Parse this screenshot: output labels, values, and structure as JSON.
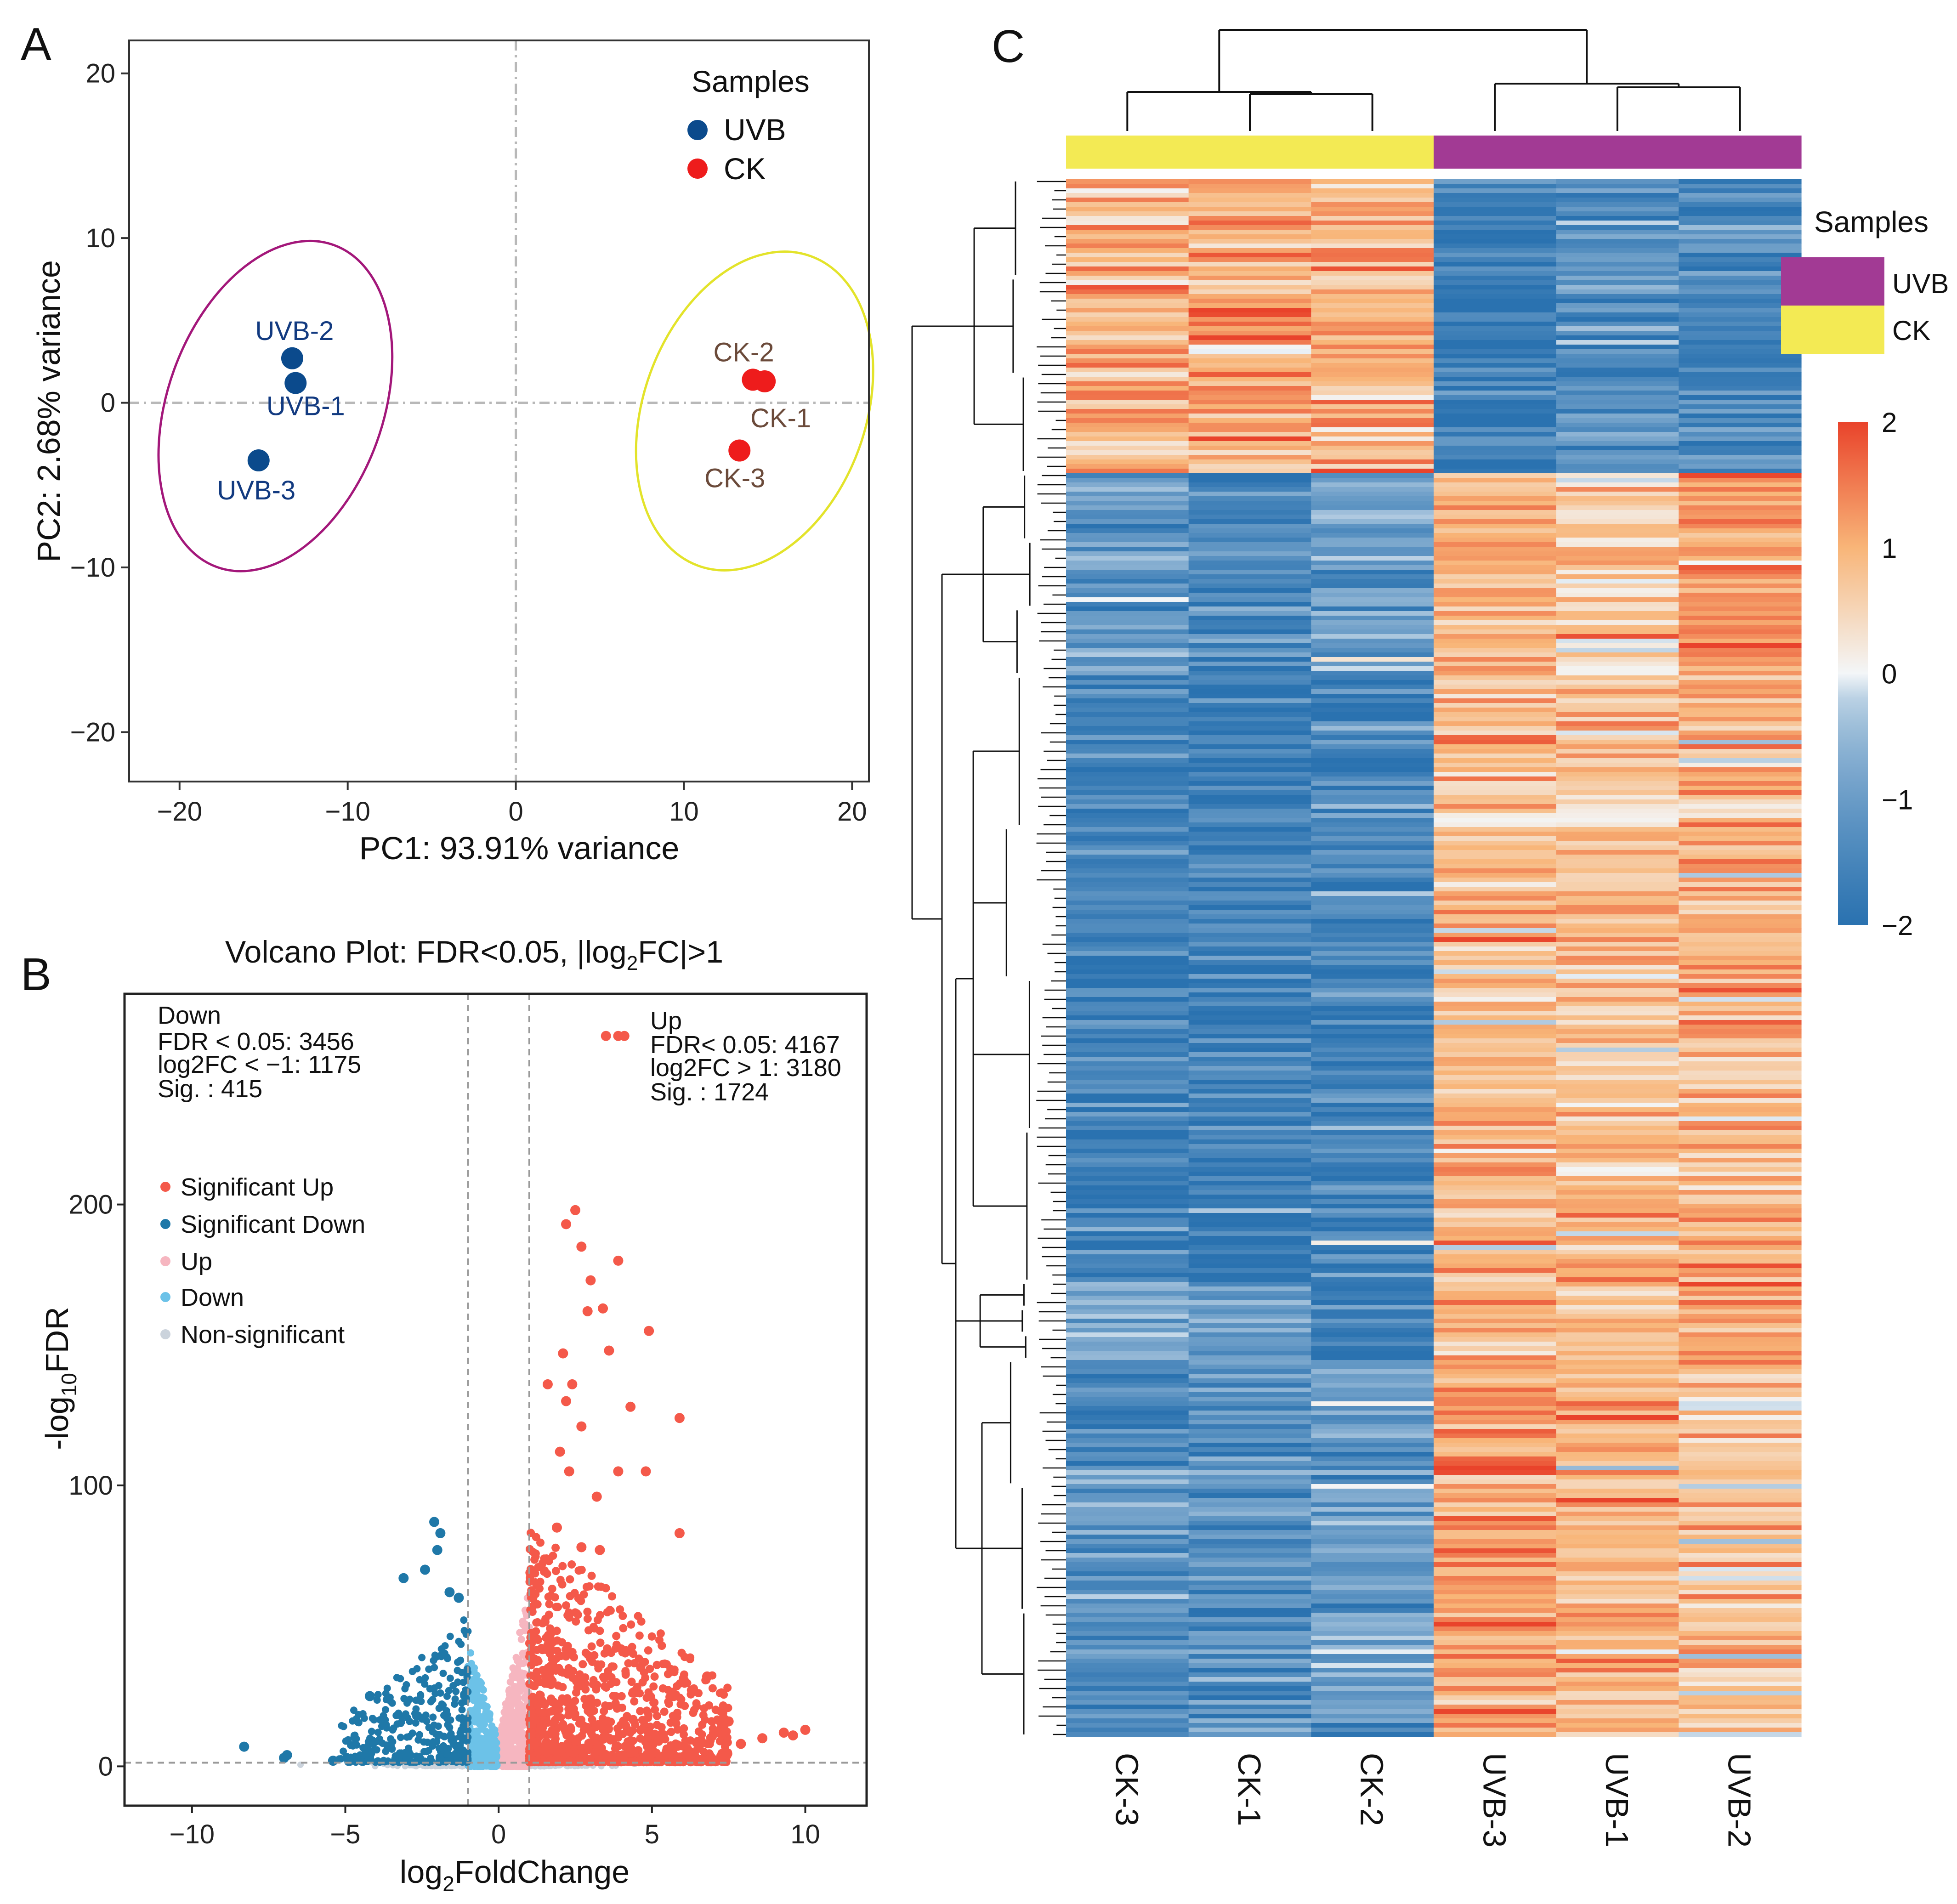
{
  "panels": {
    "a": "A",
    "b": "B",
    "c": "C"
  },
  "colors": {
    "uvb_point": "#0b4a8c",
    "ck_point": "#ee1c1c",
    "uvb_ellipse": "#a3177a",
    "ck_ellipse": "#e3e32a",
    "sig_up": "#f4594a",
    "sig_down": "#1f78a8",
    "up": "#f6b6c0",
    "down": "#6cc2e8",
    "nonsig": "#cbd3dc",
    "uvb_bar": "#a23a94",
    "ck_bar": "#f3ea54",
    "heat_low": "#2a72b0",
    "heat_mid": "#f3f6f8",
    "heat_high": "#e9432b"
  },
  "chart_data": [
    {
      "type": "scatter",
      "panel": "A",
      "title": "",
      "xlabel": "PC1: 93.91% variance",
      "ylabel": "PC2: 2.68% variance",
      "xlim": [
        -23,
        21
      ],
      "ylim": [
        -23,
        22
      ],
      "xticks": [
        -20,
        -10,
        0,
        10,
        20
      ],
      "yticks": [
        -20,
        -10,
        0,
        10,
        20
      ],
      "xtick_labels": [
        "−20",
        "−10",
        "0",
        "10",
        "20"
      ],
      "ytick_labels": [
        "−20",
        "−10",
        "0",
        "10",
        "20"
      ],
      "legend": {
        "title": "Samples",
        "position": "top-right",
        "entries": [
          "UVB",
          "CK"
        ]
      },
      "series": [
        {
          "name": "UVB",
          "points": [
            {
              "label": "UVB-1",
              "x": -13.1,
              "y": 1.2
            },
            {
              "label": "UVB-2",
              "x": -13.3,
              "y": 2.7
            },
            {
              "label": "UVB-3",
              "x": -15.3,
              "y": -3.5
            }
          ]
        },
        {
          "name": "CK",
          "points": [
            {
              "label": "CK-1",
              "x": 14.8,
              "y": 1.3
            },
            {
              "label": "CK-2",
              "x": 14.1,
              "y": 1.4
            },
            {
              "label": "CK-3",
              "x": 13.3,
              "y": -2.9
            }
          ]
        }
      ],
      "ellipses": [
        {
          "group": "UVB",
          "cx": -14.3,
          "cy": -0.2,
          "rx": 6.4,
          "ry": 10.4,
          "angle_deg": 20
        },
        {
          "group": "CK",
          "cx": 14.2,
          "cy": -0.5,
          "rx": 6.6,
          "ry": 10.0,
          "angle_deg": 20
        }
      ]
    },
    {
      "type": "scatter",
      "panel": "B",
      "title": "Volcano Plot: FDR<0.05, |log2FC|>1",
      "title_parts": {
        "pre": "Volcano Plot: FDR<0.05, |log",
        "sub": "2",
        "post": "FC|>1"
      },
      "xlabel_parts": {
        "pre": "log",
        "sub": "2",
        "post": "FoldChange"
      },
      "ylabel_parts": {
        "pre": "-log",
        "sub": "10",
        "post": "FDR"
      },
      "xlim": [
        -12.2,
        12
      ],
      "ylim": [
        -14,
        275
      ],
      "xticks": [
        -10,
        -5,
        0,
        5,
        10
      ],
      "yticks": [
        0,
        100,
        200
      ],
      "xtick_labels": [
        "−10",
        "−5",
        "0",
        "5",
        "10"
      ],
      "ytick_labels": [
        "0",
        "100",
        "200"
      ],
      "thresholds": {
        "log2fc": [
          -1,
          1
        ],
        "neglog10_fdr": 1.3
      },
      "down_stats": [
        "Down",
        "FDR < 0.05: 3456",
        "log2FC < −1: 1175",
        "Sig. : 415"
      ],
      "up_stats": [
        "Up",
        "FDR< 0.05: 4167",
        "log2FC > 1: 3180",
        "Sig. : 1724"
      ],
      "legend_entries": [
        "Significant Up",
        "Significant Down",
        "Up",
        "Down",
        "Non-significant"
      ],
      "legend_position": "middle-left",
      "highlight_points": {
        "sig_up": [
          [
            3.5,
            260
          ],
          [
            3.9,
            260
          ],
          [
            4.1,
            260
          ],
          [
            2.5,
            198
          ],
          [
            2.2,
            193
          ],
          [
            2.7,
            185
          ],
          [
            3.9,
            180
          ],
          [
            3.0,
            173
          ],
          [
            3.4,
            163
          ],
          [
            2.9,
            162
          ],
          [
            4.9,
            155
          ],
          [
            3.6,
            148
          ],
          [
            2.1,
            147
          ],
          [
            1.6,
            136
          ],
          [
            2.4,
            136
          ],
          [
            2.2,
            130
          ],
          [
            4.3,
            128
          ],
          [
            2.7,
            121
          ],
          [
            5.9,
            124
          ],
          [
            2.0,
            112
          ],
          [
            2.3,
            105
          ],
          [
            3.9,
            105
          ],
          [
            4.8,
            105
          ],
          [
            3.2,
            96
          ],
          [
            1.9,
            85
          ],
          [
            5.9,
            83
          ],
          [
            2.7,
            78
          ],
          [
            3.3,
            77
          ],
          [
            6.8,
            32
          ],
          [
            5.7,
            25
          ],
          [
            7.5,
            16
          ],
          [
            8.6,
            10
          ],
          [
            9.3,
            12
          ],
          [
            10.0,
            13
          ],
          [
            9.6,
            11
          ],
          [
            7.9,
            8
          ]
        ],
        "sig_down": [
          [
            -2.1,
            87
          ],
          [
            -1.9,
            83
          ],
          [
            -2.0,
            77
          ],
          [
            -2.4,
            70
          ],
          [
            -1.6,
            62
          ],
          [
            -3.1,
            67
          ],
          [
            -1.3,
            60
          ],
          [
            -4.2,
            25
          ],
          [
            -8.3,
            7
          ],
          [
            -6.9,
            4
          ],
          [
            -7.0,
            3
          ],
          [
            -5.4,
            2
          ]
        ]
      }
    },
    {
      "type": "heatmap",
      "panel": "C",
      "columns": [
        "CK-3",
        "CK-1",
        "CK-2",
        "UVB-3",
        "UVB-1",
        "UVB-2"
      ],
      "column_groups": [
        "CK",
        "CK",
        "CK",
        "UVB",
        "UVB",
        "UVB"
      ],
      "legend": {
        "title": "Samples",
        "entries": [
          "UVB",
          "CK"
        ]
      },
      "colorbar": {
        "min": -2,
        "max": 2,
        "ticks": [
          2,
          1,
          0,
          -1,
          -2
        ],
        "tick_labels": [
          "2",
          "1",
          "0",
          "−1",
          "−2"
        ]
      },
      "blocks": [
        {
          "rows_frac": 0.19,
          "values": [
            0.9,
            1.1,
            1.0,
            -1.6,
            -1.3,
            -1.5
          ]
        },
        {
          "rows_frac": 0.13,
          "values": [
            -1.1,
            -1.4,
            -1.0,
            0.9,
            0.7,
            1.2
          ]
        },
        {
          "rows_frac": 0.39,
          "values": [
            -1.6,
            -1.6,
            -1.5,
            0.9,
            0.8,
            0.9
          ]
        },
        {
          "rows_frac": 0.05,
          "values": [
            -0.8,
            -1.1,
            -1.8,
            1.0,
            0.8,
            0.9
          ]
        },
        {
          "rows_frac": 0.24,
          "values": [
            -1.2,
            -1.3,
            -1.0,
            1.2,
            0.9,
            0.7
          ]
        }
      ]
    }
  ]
}
